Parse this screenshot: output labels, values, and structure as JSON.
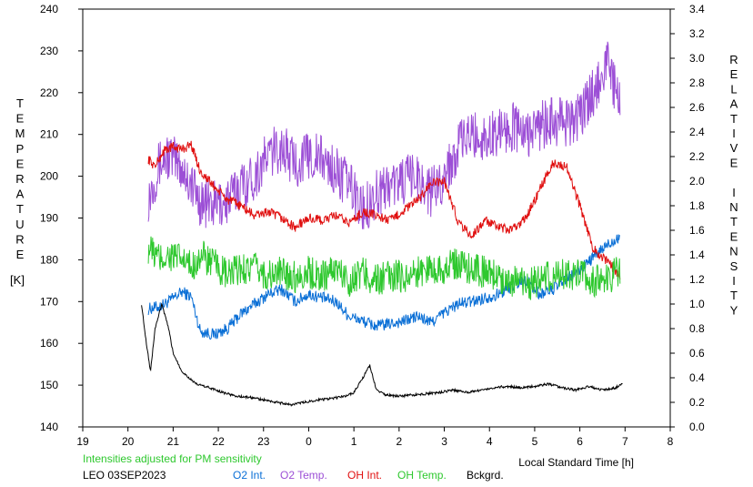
{
  "chart_data": {
    "type": "line",
    "station_date": "LEO 03SEP2023",
    "note": "Intensities adjusted for PM sensitivity",
    "xlabel": "Local Standard Time [h]",
    "ylabel_left_letters": [
      "T",
      "E",
      "M",
      "P",
      "E",
      "R",
      "A",
      "T",
      "U",
      "R",
      "E"
    ],
    "ylabel_left_unit": "[K]",
    "ylabel_right_letters": [
      "R",
      "E",
      "L",
      "A",
      "T",
      "I",
      "V",
      "E",
      "",
      "I",
      "N",
      "T",
      "E",
      "N",
      "S",
      "I",
      "T",
      "Y"
    ],
    "x_ticks": [
      "19",
      "20",
      "21",
      "22",
      "23",
      "0",
      "1",
      "2",
      "3",
      "4",
      "5",
      "6",
      "7",
      "8"
    ],
    "y_left_ticks": [
      "140",
      "150",
      "160",
      "170",
      "180",
      "190",
      "200",
      "210",
      "220",
      "230",
      "240"
    ],
    "y_right_ticks": [
      "0.0",
      "0.2",
      "0.4",
      "0.6",
      "0.8",
      "1.0",
      "1.2",
      "1.4",
      "1.6",
      "1.8",
      "2.0",
      "2.2",
      "2.4",
      "2.6",
      "2.8",
      "3.0",
      "3.2",
      "3.4"
    ],
    "xlim": [
      19,
      32
    ],
    "ylim_left": [
      140,
      240
    ],
    "ylim_right": [
      0.0,
      3.4
    ],
    "grid": false,
    "series": [
      {
        "name": "O2 Int.",
        "axis": "right",
        "color": "#0a6fd6",
        "noise": 0.05,
        "x": [
          20.45,
          20.7,
          20.9,
          21.2,
          21.4,
          21.6,
          21.9,
          22.2,
          22.5,
          22.8,
          23.1,
          23.4,
          23.7,
          24.0,
          24.3,
          24.6,
          24.9,
          25.2,
          25.5,
          25.8,
          26.1,
          26.4,
          26.7,
          27.0,
          27.3,
          27.6,
          27.9,
          28.2,
          28.5,
          28.8,
          29.1,
          29.4,
          29.7,
          30.0,
          30.3,
          30.6,
          30.9
        ],
        "y": [
          0.96,
          0.98,
          1.02,
          1.1,
          1.06,
          0.78,
          0.75,
          0.8,
          0.92,
          1.0,
          1.08,
          1.12,
          1.02,
          1.08,
          1.05,
          1.02,
          0.9,
          0.86,
          0.82,
          0.84,
          0.86,
          0.9,
          0.85,
          0.93,
          1.0,
          1.02,
          1.05,
          1.08,
          1.15,
          1.2,
          1.08,
          1.12,
          1.2,
          1.28,
          1.38,
          1.48,
          1.56
        ]
      },
      {
        "name": "O2 Temp.",
        "axis": "left",
        "color": "#9c4fd6",
        "noise": 6,
        "x": [
          20.45,
          20.7,
          20.9,
          21.2,
          21.4,
          21.6,
          21.9,
          22.2,
          22.5,
          22.8,
          23.1,
          23.4,
          23.7,
          24.0,
          24.3,
          24.6,
          24.9,
          25.2,
          25.5,
          25.8,
          26.1,
          26.4,
          26.7,
          27.0,
          27.3,
          27.6,
          27.9,
          28.2,
          28.5,
          28.8,
          29.1,
          29.4,
          29.7,
          30.0,
          30.3,
          30.6,
          30.9
        ],
        "y": [
          195,
          203,
          205,
          202,
          198,
          194,
          193,
          194,
          198,
          200,
          205,
          207,
          203,
          205,
          204,
          201,
          198,
          192,
          196,
          198,
          199,
          200,
          196,
          200,
          207,
          210,
          209,
          211,
          212,
          210,
          212,
          213,
          213,
          214,
          220,
          228,
          216
        ]
      },
      {
        "name": "OH Int.",
        "axis": "right",
        "color": "#e01010",
        "noise": 0.04,
        "x": [
          20.45,
          20.6,
          20.8,
          21.0,
          21.2,
          21.4,
          21.6,
          21.8,
          22.0,
          22.2,
          22.5,
          22.8,
          23.1,
          23.4,
          23.7,
          24.0,
          24.3,
          24.6,
          24.9,
          25.2,
          25.5,
          25.8,
          26.1,
          26.4,
          26.7,
          27.0,
          27.3,
          27.6,
          27.9,
          28.2,
          28.5,
          28.8,
          29.1,
          29.4,
          29.7,
          30.0,
          30.3,
          30.6,
          30.9
        ],
        "y": [
          2.18,
          2.12,
          2.25,
          2.28,
          2.26,
          2.3,
          2.08,
          2.0,
          1.92,
          1.85,
          1.8,
          1.72,
          1.75,
          1.7,
          1.62,
          1.7,
          1.68,
          1.72,
          1.66,
          1.75,
          1.72,
          1.68,
          1.76,
          1.84,
          1.98,
          2.0,
          1.68,
          1.55,
          1.68,
          1.62,
          1.6,
          1.7,
          1.92,
          2.15,
          2.12,
          1.8,
          1.45,
          1.35,
          1.22
        ]
      },
      {
        "name": "OH Temp.",
        "axis": "left",
        "color": "#2ec82e",
        "noise": 4,
        "x": [
          20.45,
          20.7,
          20.9,
          21.2,
          21.4,
          21.6,
          21.9,
          22.2,
          22.5,
          22.8,
          23.1,
          23.4,
          23.7,
          24.0,
          24.3,
          24.6,
          24.9,
          25.2,
          25.5,
          25.8,
          26.1,
          26.4,
          26.7,
          27.0,
          27.3,
          27.6,
          27.9,
          28.2,
          28.5,
          28.8,
          29.1,
          29.4,
          29.7,
          30.0,
          30.3,
          30.6,
          30.9
        ],
        "y": [
          183,
          180,
          181,
          180,
          178,
          181,
          179,
          176,
          178,
          178,
          176,
          177,
          176,
          177,
          176,
          178,
          175,
          177,
          175,
          176,
          176,
          177,
          178,
          178,
          179,
          178,
          177,
          176,
          175,
          174,
          175,
          176,
          177,
          176,
          175,
          175,
          178
        ]
      },
      {
        "name": "Bckgrd.",
        "axis": "right",
        "color": "#000000",
        "noise": 0.01,
        "x": [
          20.3,
          20.4,
          20.5,
          20.6,
          20.75,
          20.9,
          21.0,
          21.2,
          21.5,
          21.8,
          22.1,
          22.4,
          22.7,
          23.0,
          23.3,
          23.6,
          23.9,
          24.2,
          24.5,
          24.8,
          25.0,
          25.2,
          25.35,
          25.5,
          25.7,
          26.0,
          26.3,
          26.6,
          26.9,
          27.2,
          27.5,
          27.8,
          28.1,
          28.4,
          28.7,
          29.0,
          29.3,
          29.6,
          29.9,
          30.2,
          30.5,
          30.8,
          30.95
        ],
        "y": [
          1.0,
          0.7,
          0.45,
          0.8,
          1.0,
          0.8,
          0.6,
          0.45,
          0.35,
          0.32,
          0.28,
          0.25,
          0.24,
          0.22,
          0.2,
          0.18,
          0.2,
          0.22,
          0.23,
          0.25,
          0.28,
          0.4,
          0.5,
          0.3,
          0.26,
          0.25,
          0.26,
          0.27,
          0.28,
          0.3,
          0.28,
          0.3,
          0.32,
          0.33,
          0.32,
          0.33,
          0.35,
          0.32,
          0.3,
          0.33,
          0.3,
          0.32,
          0.36
        ]
      }
    ]
  }
}
